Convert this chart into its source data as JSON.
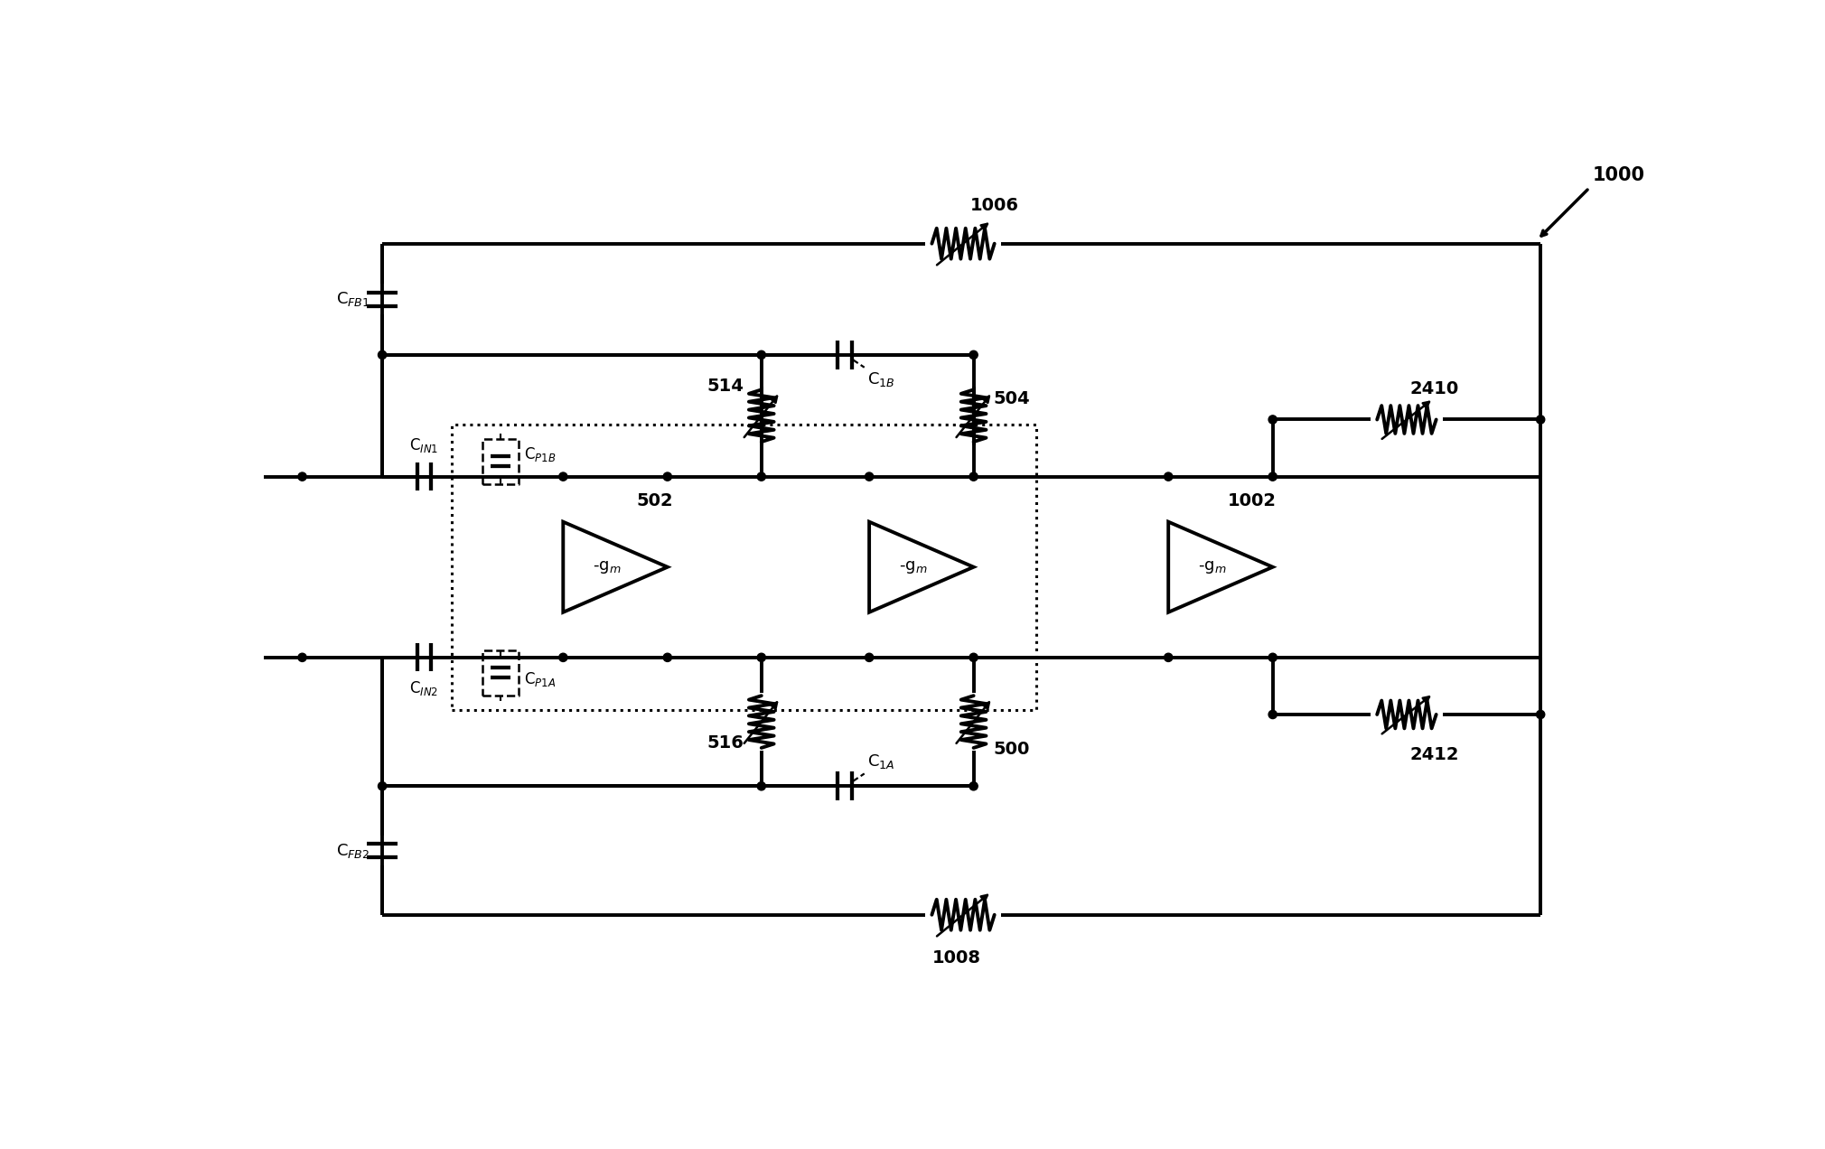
{
  "bg_color": "#ffffff",
  "line_color": "#000000",
  "lw": 2.8,
  "fig_width": 20.2,
  "fig_height": 12.72,
  "labels": {
    "CFB1": "C$_{FB1}$",
    "CFB2": "C$_{FB2}$",
    "CIN1": "C$_{IN1}$",
    "CIN2": "C$_{IN2}$",
    "CP1B": "C$_{P1B}$",
    "CP1A": "C$_{P1A}$",
    "C1B": "C$_{1B}$",
    "C1A": "C$_{1A}$",
    "R1006": "1006",
    "R1008": "1008",
    "R514": "514",
    "R516": "516",
    "R504": "504",
    "R2410": "2410",
    "R2412": "2412",
    "R500": "500",
    "A502": "502",
    "A1002": "1002",
    "label1000": "1000"
  }
}
